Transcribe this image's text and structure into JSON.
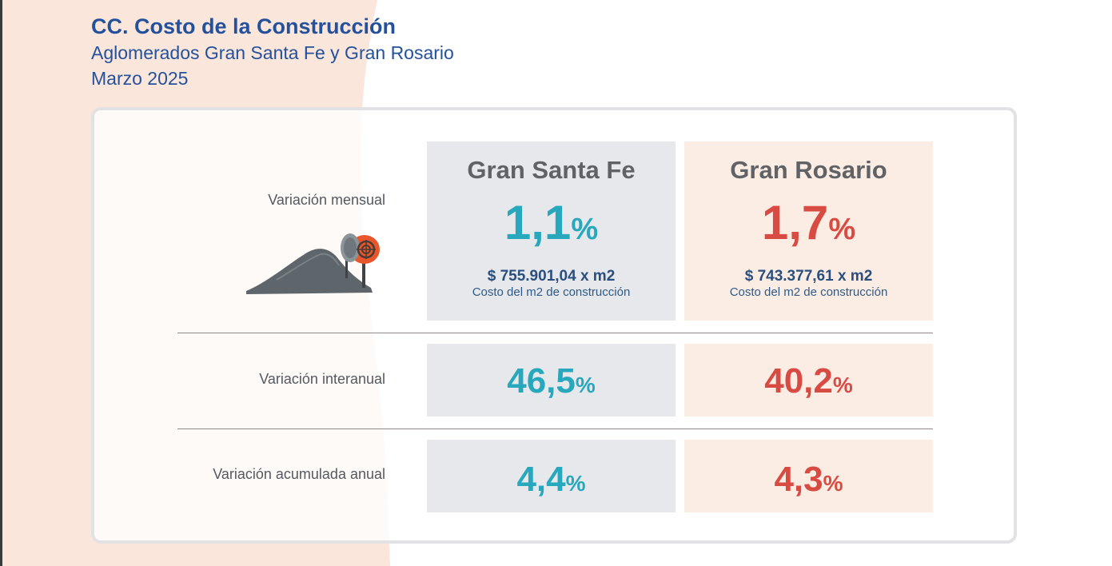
{
  "header": {
    "title": "CC. Costo de la Construcción",
    "subtitle": "Aglomerados Gran Santa Fe y Gran Rosario",
    "period": "Marzo 2025"
  },
  "rows": {
    "monthly": "Variación mensual",
    "yearly": "Variación interanual",
    "accumulated": "Variación acumulada anual"
  },
  "santa_fe": {
    "name": "Gran Santa Fe",
    "monthly": "1,1",
    "cost": "$ 755.901,04 x m2",
    "cost_label": "Costo del m2 de construcción",
    "yearly": "46,5",
    "accumulated": "4,4"
  },
  "rosario": {
    "name": "Gran Rosario",
    "monthly": "1,7",
    "cost": "$ 743.377,61 x m2",
    "cost_label": "Costo del m2 de construcción",
    "yearly": "40,2",
    "accumulated": "4,3"
  },
  "percent_sign": "%",
  "colors": {
    "title": "#24519c",
    "santa_fe_accent": "#27a8bd",
    "rosario_accent": "#d84b42",
    "santa_fe_card": "#e6e8ec",
    "rosario_card": "#fcede4",
    "background_shape": "#fbe6dc"
  },
  "icons": {
    "illustration": "cement-mixer-icon"
  }
}
